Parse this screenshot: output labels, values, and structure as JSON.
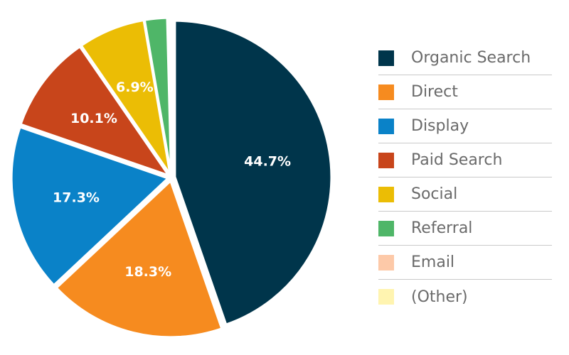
{
  "chart_data": {
    "type": "pie",
    "title": "",
    "slices": [
      {
        "name": "Organic Search",
        "value": 44.7,
        "label": "44.7%",
        "color": "#00354b"
      },
      {
        "name": "Direct",
        "value": 18.3,
        "label": "18.3%",
        "color": "#f68b1f"
      },
      {
        "name": "Display",
        "value": 17.3,
        "label": "17.3%",
        "color": "#0a82c8"
      },
      {
        "name": "Paid Search",
        "value": 10.1,
        "label": "10.1%",
        "color": "#c8451b"
      },
      {
        "name": "Social",
        "value": 6.9,
        "label": "6.9%",
        "color": "#ebbd05"
      },
      {
        "name": "Referral",
        "value": 2.3,
        "label": "",
        "color": "#4fb668"
      },
      {
        "name": "Email",
        "value": 0.2,
        "label": "",
        "color": "#fdc9a8"
      },
      {
        "name": "(Other)",
        "value": 0.2,
        "label": "",
        "color": "#fff4b0"
      }
    ],
    "legend_position": "right"
  }
}
